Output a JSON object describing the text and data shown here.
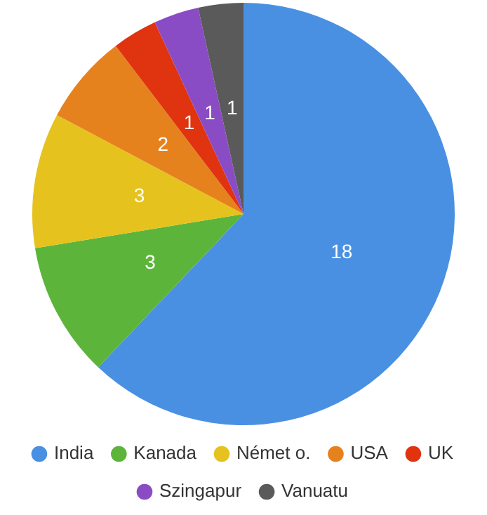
{
  "chart_data": {
    "type": "pie",
    "categories": [
      "India",
      "Kanada",
      "Német o.",
      "USA",
      "UK",
      "Szingapur",
      "Vanuatu"
    ],
    "values": [
      18,
      3,
      3,
      2,
      1,
      1,
      1
    ],
    "colors": [
      "#4a90e2",
      "#5cb53a",
      "#e6c21e",
      "#e6821e",
      "#e0330f",
      "#8a4cc4",
      "#5a5a5a"
    ],
    "data_labels": true,
    "legend": "bottom"
  }
}
